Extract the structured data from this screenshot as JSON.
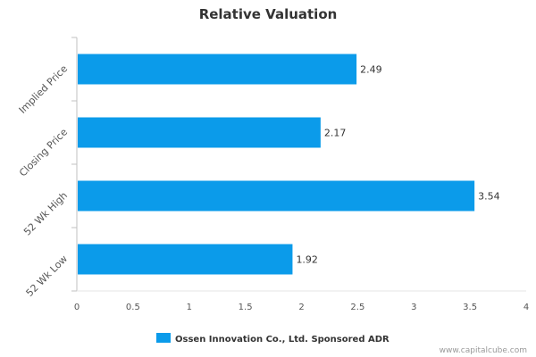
{
  "chart_data": {
    "type": "bar",
    "orientation": "horizontal",
    "title": "Relative Valuation",
    "categories": [
      "Implied Price",
      "Closing Price",
      "52 Wk High",
      "52 Wk Low"
    ],
    "series": [
      {
        "name": "Ossen Innovation Co., Ltd. Sponsored ADR",
        "values": [
          2.49,
          2.17,
          3.54,
          1.92
        ]
      }
    ],
    "data_labels": [
      "2.49",
      "2.17",
      "3.54",
      "1.92"
    ],
    "xlim": [
      0,
      4
    ],
    "x_ticks": [
      "0",
      "0.5",
      "1",
      "1.5",
      "2",
      "2.5",
      "3",
      "3.5",
      "4"
    ],
    "grid": false,
    "legend_position": "bottom",
    "bar_color": "#0b9bea"
  },
  "watermark": "www.capitalcube.com"
}
